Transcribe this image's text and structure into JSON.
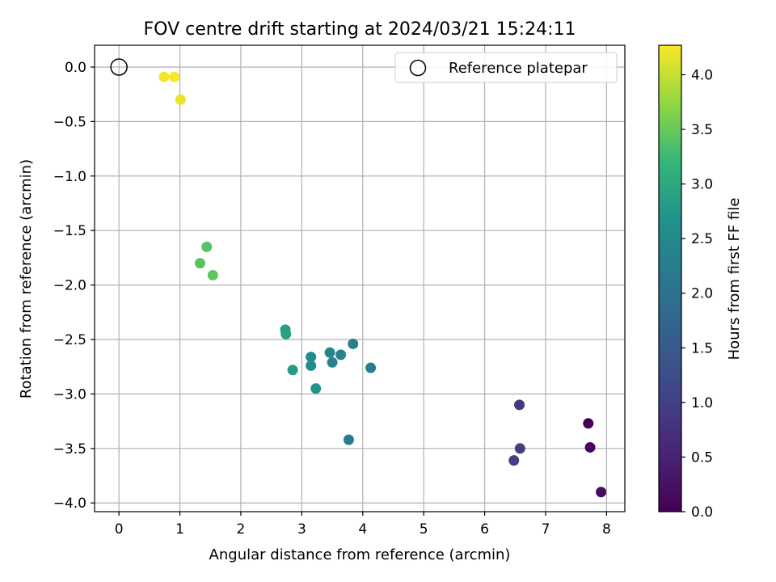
{
  "chart_data": {
    "type": "scatter",
    "title": "FOV centre drift starting at 2024/03/21 15:24:11",
    "xlabel": "Angular distance from reference (arcmin)",
    "ylabel": "Rotation from reference (arcmin)",
    "xlim": [
      -0.4,
      8.3
    ],
    "ylim": [
      -4.08,
      0.2
    ],
    "xticks": [
      0,
      1,
      2,
      3,
      4,
      5,
      6,
      7,
      8
    ],
    "xtick_labels": [
      "0",
      "1",
      "2",
      "3",
      "4",
      "5",
      "6",
      "7",
      "8"
    ],
    "yticks": [
      0.0,
      -0.5,
      -1.0,
      -1.5,
      -2.0,
      -2.5,
      -3.0,
      -3.5,
      -4.0
    ],
    "ytick_labels": [
      "0.0",
      "−0.5",
      "−1.0",
      "−1.5",
      "−2.0",
      "−2.5",
      "−3.0",
      "−3.5",
      "−4.0"
    ],
    "grid": true,
    "legend": {
      "position": "top-right",
      "entries": [
        "Reference platepar"
      ]
    },
    "reference_point": {
      "x": 0,
      "y": 0
    },
    "colorbar": {
      "label": "Hours from first FF file",
      "range": [
        0,
        4.27
      ],
      "ticks": [
        0.0,
        0.5,
        1.0,
        1.5,
        2.0,
        2.5,
        3.0,
        3.5,
        4.0
      ],
      "tick_labels": [
        "0.0",
        "0.5",
        "1.0",
        "1.5",
        "2.0",
        "2.5",
        "3.0",
        "3.5",
        "4.0"
      ],
      "colormap": "viridis"
    },
    "points": [
      {
        "x": 7.7,
        "y": -3.27,
        "hours": 0.0
      },
      {
        "x": 7.73,
        "y": -3.49,
        "hours": 0.08
      },
      {
        "x": 7.91,
        "y": -3.9,
        "hours": 0.15
      },
      {
        "x": 6.57,
        "y": -3.1,
        "hours": 0.9
      },
      {
        "x": 6.58,
        "y": -3.5,
        "hours": 0.95
      },
      {
        "x": 6.48,
        "y": -3.61,
        "hours": 1.0
      },
      {
        "x": 3.77,
        "y": -3.42,
        "hours": 2.2
      },
      {
        "x": 4.13,
        "y": -2.76,
        "hours": 2.25
      },
      {
        "x": 3.84,
        "y": -2.54,
        "hours": 2.3
      },
      {
        "x": 3.64,
        "y": -2.64,
        "hours": 2.35
      },
      {
        "x": 3.5,
        "y": -2.71,
        "hours": 2.38
      },
      {
        "x": 3.46,
        "y": -2.62,
        "hours": 2.42
      },
      {
        "x": 3.15,
        "y": -2.66,
        "hours": 2.55
      },
      {
        "x": 3.15,
        "y": -2.74,
        "hours": 2.6
      },
      {
        "x": 3.23,
        "y": -2.95,
        "hours": 2.7
      },
      {
        "x": 2.85,
        "y": -2.78,
        "hours": 2.8
      },
      {
        "x": 2.73,
        "y": -2.41,
        "hours": 2.85
      },
      {
        "x": 2.74,
        "y": -2.45,
        "hours": 2.88
      },
      {
        "x": 1.44,
        "y": -1.65,
        "hours": 3.4
      },
      {
        "x": 1.33,
        "y": -1.8,
        "hours": 3.42
      },
      {
        "x": 1.54,
        "y": -1.91,
        "hours": 3.45
      },
      {
        "x": 1.01,
        "y": -0.3,
        "hours": 4.18
      },
      {
        "x": 0.74,
        "y": -0.09,
        "hours": 4.22
      },
      {
        "x": 0.91,
        "y": -0.09,
        "hours": 4.25
      }
    ]
  }
}
